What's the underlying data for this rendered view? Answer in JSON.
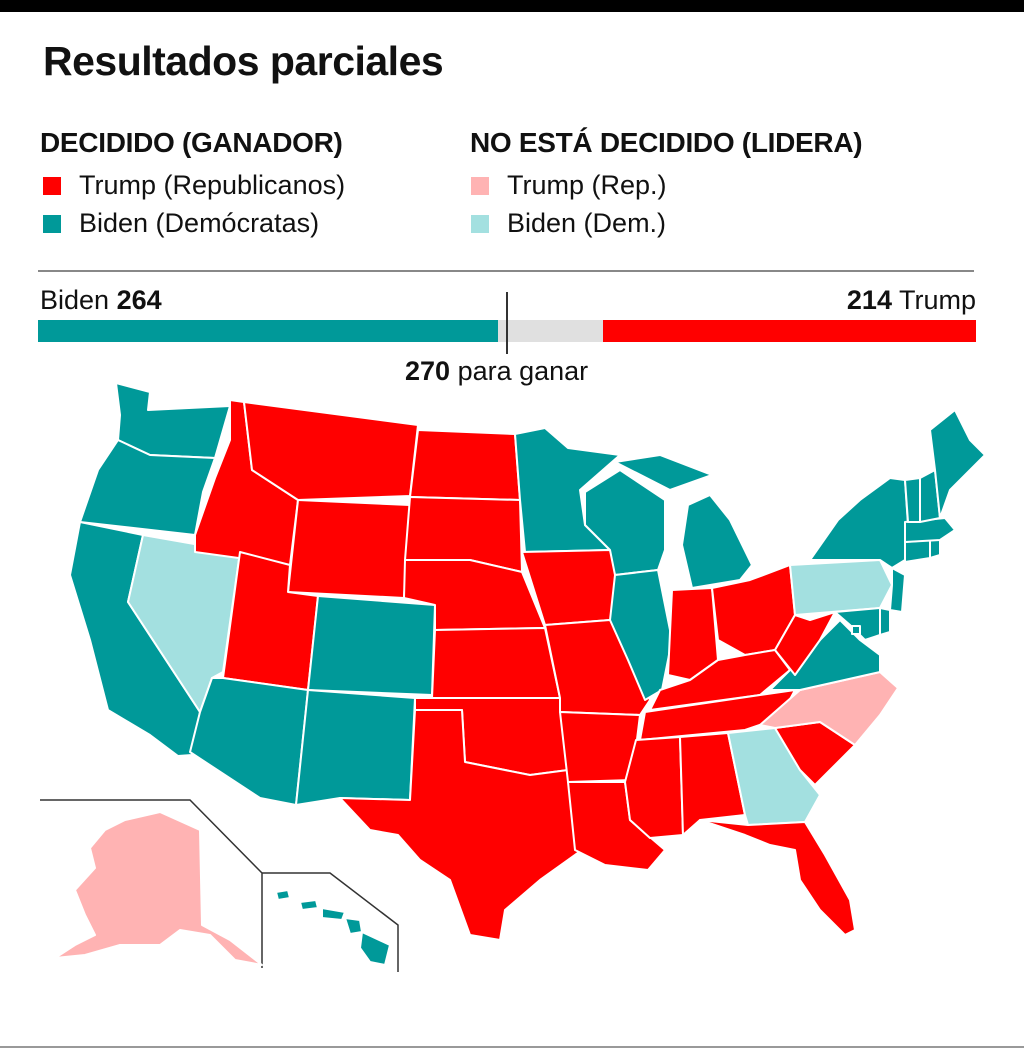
{
  "title": "Resultados parciales",
  "legend": {
    "decided": {
      "heading": "DECIDIDO (GANADOR)",
      "items": [
        {
          "label": "Trump (Republicanos)",
          "color": "#ff0000"
        },
        {
          "label": "Biden (Demócratas)",
          "color": "#009999"
        }
      ]
    },
    "undecided": {
      "heading": "NO ESTÁ DECIDIDO (LIDERA)",
      "items": [
        {
          "label": "Trump (Rep.)",
          "color": "#ffb3b3"
        },
        {
          "label": "Biden (Dem.)",
          "color": "#a3e0e0"
        }
      ]
    }
  },
  "tally": {
    "biden_name": "Biden",
    "biden_votes": 264,
    "trump_votes": 214,
    "trump_name": "Trump",
    "goal_votes": 270,
    "goal_text": "para ganar",
    "total_votes": 538,
    "undecided_color": "#e0e0e0"
  },
  "map_data": {
    "colors": {
      "trump_won": "#ff0000",
      "biden_won": "#009999",
      "trump_leading": "#ffb3b3",
      "biden_leading": "#a3e0e0"
    },
    "states": {
      "WA": "biden_won",
      "OR": "biden_won",
      "CA": "biden_won",
      "NV": "biden_leading",
      "ID": "trump_won",
      "MT": "trump_won",
      "WY": "trump_won",
      "UT": "trump_won",
      "AZ": "biden_won",
      "CO": "biden_won",
      "NM": "biden_won",
      "ND": "trump_won",
      "SD": "trump_won",
      "NE": "trump_won",
      "KS": "trump_won",
      "OK": "trump_won",
      "TX": "trump_won",
      "MN": "biden_won",
      "IA": "trump_won",
      "MO": "trump_won",
      "AR": "trump_won",
      "LA": "trump_won",
      "WI": "biden_won",
      "IL": "biden_won",
      "MI": "biden_won",
      "IN": "trump_won",
      "OH": "trump_won",
      "KY": "trump_won",
      "TN": "trump_won",
      "MS": "trump_won",
      "AL": "trump_won",
      "GA": "biden_leading",
      "FL": "trump_won",
      "SC": "trump_won",
      "NC": "trump_leading",
      "VA": "biden_won",
      "WV": "trump_won",
      "PA": "biden_leading",
      "NY": "biden_won",
      "NJ": "biden_won",
      "DE": "biden_won",
      "MD": "biden_won",
      "DC": "biden_won",
      "CT": "biden_won",
      "RI": "biden_won",
      "MA": "biden_won",
      "VT": "biden_won",
      "NH": "biden_won",
      "ME": "biden_won",
      "AK": "trump_leading",
      "HI": "biden_won"
    }
  }
}
